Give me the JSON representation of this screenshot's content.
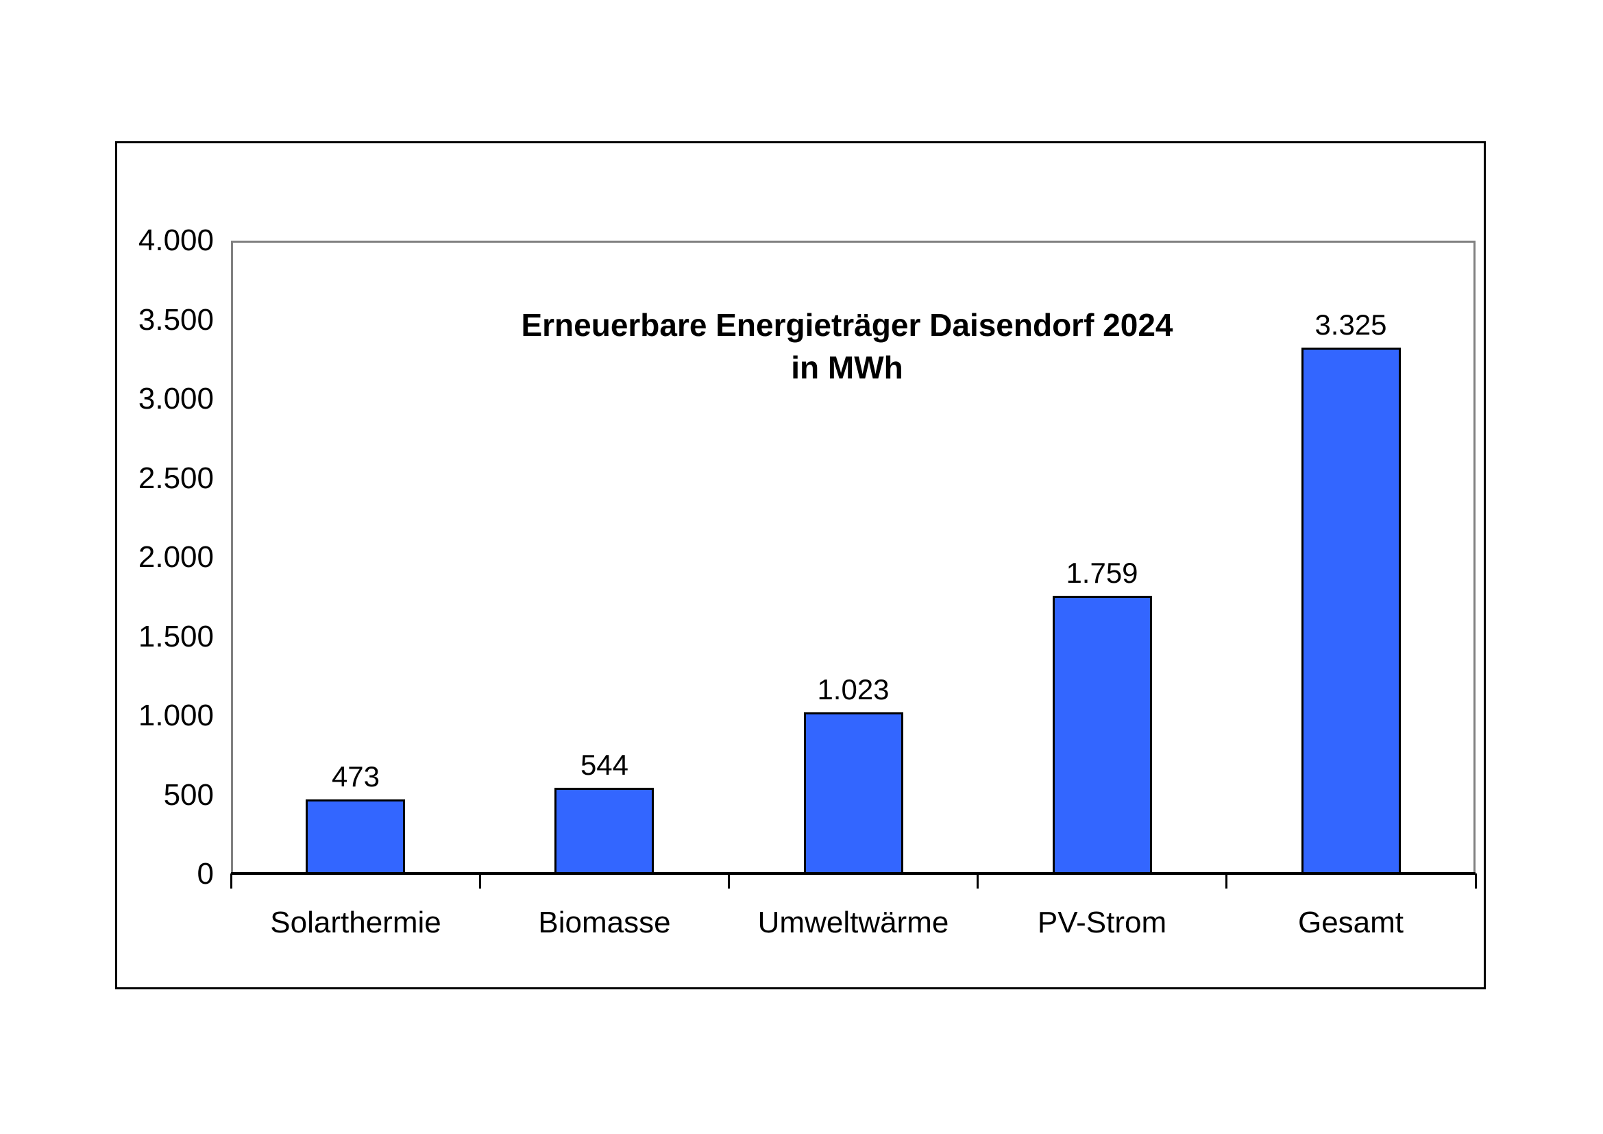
{
  "chart_data": {
    "type": "bar",
    "title": "Erneuerbare Energieträger Daisendorf 2024",
    "subtitle": "in MWh",
    "categories": [
      "Solarthermie",
      "Biomasse",
      "Umweltwärme",
      "PV-Strom",
      "Gesamt"
    ],
    "values": [
      473,
      544,
      1023,
      1759,
      3325
    ],
    "value_labels": [
      "473",
      "544",
      "1.023",
      "1.759",
      "3.325"
    ],
    "xlabel": "",
    "ylabel": "",
    "ylim": [
      0,
      4000
    ],
    "y_tick_values": [
      0,
      500,
      1000,
      1500,
      2000,
      2500,
      3000,
      3500,
      4000
    ],
    "y_tick_labels": [
      "0",
      "500",
      "1.000",
      "1.500",
      "2.000",
      "2.500",
      "3.000",
      "3.500",
      "4.000"
    ],
    "grid": false,
    "legend": false,
    "colors": {
      "bar_fill": "#3366FF",
      "bar_border": "#000000",
      "plot_border": "#808080",
      "axis_line": "#000000",
      "frame_border": "#000000",
      "text": "#000000",
      "background": "#FFFFFF"
    }
  }
}
